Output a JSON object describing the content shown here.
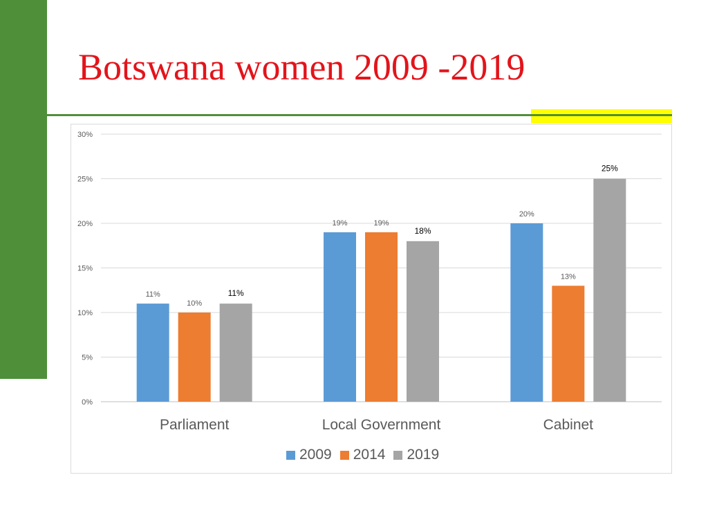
{
  "slide": {
    "title": "Botswana women 2009 -2019"
  },
  "chart_data": {
    "type": "bar",
    "categories": [
      "Parliament",
      "Local Government",
      "Cabinet"
    ],
    "series": [
      {
        "name": "2009",
        "values": [
          0.11,
          0.19,
          0.2
        ],
        "labels": [
          "11%",
          "19%",
          "20%"
        ],
        "color": "#5b9bd5"
      },
      {
        "name": "2014",
        "values": [
          0.1,
          0.19,
          0.13
        ],
        "labels": [
          "10%",
          "19%",
          "13%"
        ],
        "color": "#ed7d31"
      },
      {
        "name": "2019",
        "values": [
          0.11,
          0.18,
          0.25
        ],
        "labels": [
          "11%",
          "18%",
          "25%"
        ],
        "color": "#a5a5a5"
      }
    ],
    "ylim": [
      0,
      0.3
    ],
    "y_ticks": [
      "0%",
      "5%",
      "10%",
      "15%",
      "20%",
      "25%",
      "30%"
    ],
    "y_tick_values": [
      0,
      0.05,
      0.1,
      0.15,
      0.2,
      0.25,
      0.3
    ],
    "grid": true,
    "legend_position": "bottom",
    "title": "",
    "xlabel": "",
    "ylabel": ""
  },
  "colors": {
    "title": "#e3141b",
    "accent_green": "#4f8f3a",
    "highlight_yellow": "#ffff00",
    "gridline": "#d9d9d9"
  }
}
